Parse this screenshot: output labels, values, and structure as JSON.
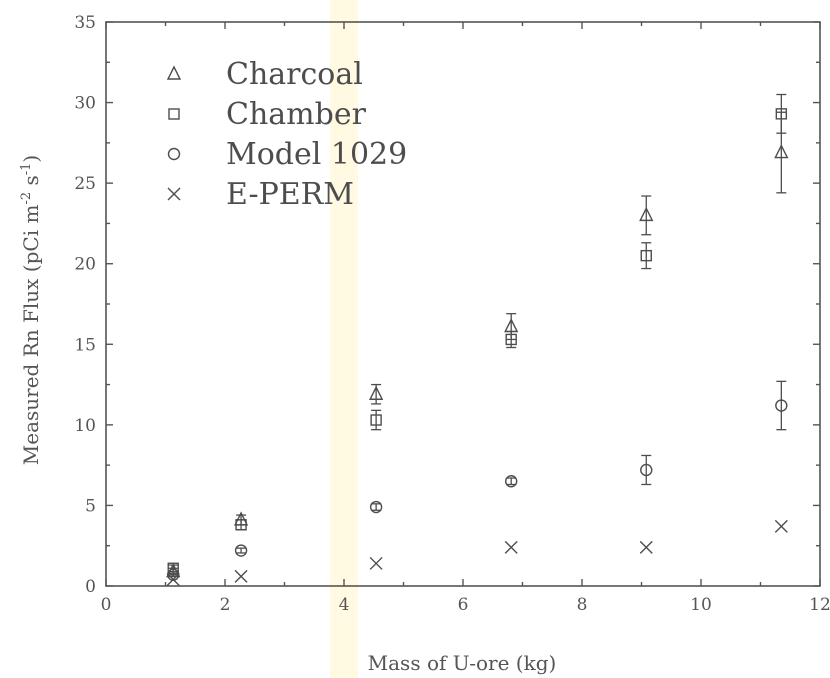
{
  "chart_data": {
    "type": "scatter",
    "title": "",
    "xlabel": "Mass of U-ore (kg)",
    "ylabel_main": "Measured Rn Flux (pCi m",
    "ylabel_sup1": "-2",
    "ylabel_mid": " s",
    "ylabel_sup2": "-1",
    "ylabel_end": ")",
    "xlim": [
      0,
      12
    ],
    "ylim": [
      0,
      35
    ],
    "x_ticks": [
      0,
      2,
      4,
      6,
      8,
      10,
      12
    ],
    "y_ticks": [
      0,
      5,
      10,
      15,
      20,
      25,
      30,
      35
    ],
    "legend_position": "top-left",
    "series": [
      {
        "name": "Charcoal",
        "marker": "triangle",
        "points": [
          {
            "x": 1.13,
            "y": 0.9,
            "err": 0.2
          },
          {
            "x": 2.27,
            "y": 4.1,
            "err": 0.3
          },
          {
            "x": 4.54,
            "y": 11.9,
            "err": 0.6
          },
          {
            "x": 6.81,
            "y": 16.1,
            "err": 0.8
          },
          {
            "x": 9.08,
            "y": 23.0,
            "err": 1.2
          },
          {
            "x": 11.35,
            "y": 26.9,
            "err": 2.5
          }
        ]
      },
      {
        "name": "Chamber",
        "marker": "square",
        "points": [
          {
            "x": 1.13,
            "y": 1.1,
            "err": 0.2
          },
          {
            "x": 2.27,
            "y": 3.8,
            "err": 0.3
          },
          {
            "x": 4.54,
            "y": 10.3,
            "err": 0.6
          },
          {
            "x": 6.81,
            "y": 15.3,
            "err": 0.5
          },
          {
            "x": 9.08,
            "y": 20.5,
            "err": 0.8
          },
          {
            "x": 11.35,
            "y": 29.3,
            "err": 1.2
          }
        ]
      },
      {
        "name": "Model 1029",
        "marker": "circle",
        "points": [
          {
            "x": 1.13,
            "y": 0.7,
            "err": 0.1
          },
          {
            "x": 2.27,
            "y": 2.2,
            "err": 0.15
          },
          {
            "x": 4.54,
            "y": 4.9,
            "err": 0.2
          },
          {
            "x": 6.81,
            "y": 6.5,
            "err": 0.2
          },
          {
            "x": 9.08,
            "y": 7.2,
            "err": 0.9
          },
          {
            "x": 11.35,
            "y": 11.2,
            "err": 1.5
          }
        ]
      },
      {
        "name": "E-PERM",
        "marker": "cross",
        "points": [
          {
            "x": 1.13,
            "y": 0.4,
            "err": 0
          },
          {
            "x": 2.27,
            "y": 0.6,
            "err": 0
          },
          {
            "x": 4.54,
            "y": 1.4,
            "err": 0
          },
          {
            "x": 6.81,
            "y": 2.4,
            "err": 0
          },
          {
            "x": 9.08,
            "y": 2.4,
            "err": 0
          },
          {
            "x": 11.35,
            "y": 3.7,
            "err": 0
          }
        ]
      }
    ]
  }
}
